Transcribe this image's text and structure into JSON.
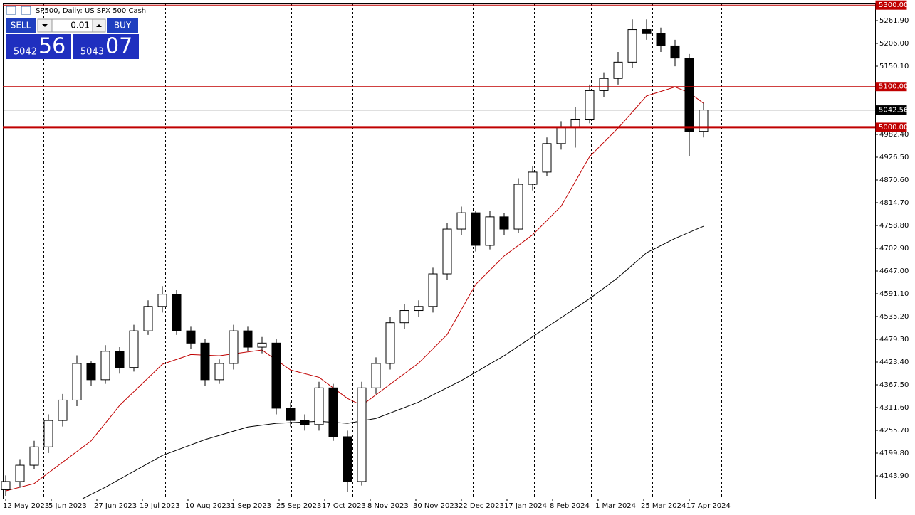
{
  "header": {
    "title": "SP500, Daily:  US SPX 500 Cash"
  },
  "trade_panel": {
    "sell": "SELL",
    "buy": "BUY",
    "volume": "0.01",
    "bid_big": "5042",
    "bid_small": "56",
    "ask_big": "5043",
    "ask_small": "07"
  },
  "chart_data": {
    "type": "candlestick",
    "xlim": [
      -1,
      305.25
    ],
    "ylim": [
      4088.0,
      5305.6
    ],
    "xticks": [
      {
        "value": 0,
        "label": "12 May 2023"
      },
      {
        "value": 16,
        "label": "5 Jun 2023"
      },
      {
        "value": 32,
        "label": "27 Jun 2023"
      },
      {
        "value": 48,
        "label": "19 Jul 2023"
      },
      {
        "value": 64,
        "label": "10 Aug 2023"
      },
      {
        "value": 80,
        "label": "1 Sep 2023"
      },
      {
        "value": 96,
        "label": "25 Sep 2023"
      },
      {
        "value": 112,
        "label": "17 Oct 2023"
      },
      {
        "value": 128,
        "label": "8 Nov 2023"
      },
      {
        "value": 144,
        "label": "30 Nov 2023"
      },
      {
        "value": 160,
        "label": "22 Dec 2023"
      },
      {
        "value": 176,
        "label": "17 Jan 2024"
      },
      {
        "value": 192,
        "label": "8 Feb 2024"
      },
      {
        "value": 208,
        "label": "1 Mar 2024"
      },
      {
        "value": 224,
        "label": "25 Mar 2024"
      },
      {
        "value": 240,
        "label": "17 Apr 2024"
      }
    ],
    "yticks": [
      {
        "value": 5261.9,
        "label": "5261.90"
      },
      {
        "value": 5206.0,
        "label": "5206.00"
      },
      {
        "value": 5150.1,
        "label": "5150.10"
      },
      {
        "value": 4982.4,
        "label": "4982.40"
      },
      {
        "value": 4926.5,
        "label": "4926.50"
      },
      {
        "value": 4870.6,
        "label": "4870.60"
      },
      {
        "value": 4814.7,
        "label": "4814.70"
      },
      {
        "value": 4758.8,
        "label": "4758.80"
      },
      {
        "value": 4702.9,
        "label": "4702.90"
      },
      {
        "value": 4647.0,
        "label": "4647.00"
      },
      {
        "value": 4591.1,
        "label": "4591.10"
      },
      {
        "value": 4535.2,
        "label": "4535.20"
      },
      {
        "value": 4479.3,
        "label": "4479.30"
      },
      {
        "value": 4423.4,
        "label": "4423.40"
      },
      {
        "value": 4367.5,
        "label": "4367.50"
      },
      {
        "value": 4311.6,
        "label": "4311.60"
      },
      {
        "value": 4255.7,
        "label": "4255.70"
      },
      {
        "value": 4199.8,
        "label": "4199.80"
      },
      {
        "value": 4143.9,
        "label": "4143.90"
      }
    ],
    "hlines": [
      {
        "value": 5300.0,
        "label": "5300.00",
        "color": "#c00000",
        "width": 1
      },
      {
        "value": 5100.0,
        "label": "5100.00",
        "color": "#c00000",
        "width": 1
      },
      {
        "value": 5042.56,
        "label": "5042.56",
        "color": "#000000",
        "width": 1
      },
      {
        "value": 5000.0,
        "label": "5000.00",
        "color": "#c00000",
        "width": 3
      }
    ],
    "candles": {
      "x": [
        0,
        5,
        10,
        15,
        20,
        25,
        30,
        35,
        40,
        45,
        50,
        55,
        60,
        65,
        70,
        75,
        80,
        85,
        90,
        95,
        100,
        105,
        110,
        115,
        120,
        125,
        130,
        135,
        140,
        145,
        150,
        155,
        160,
        165,
        170,
        175,
        180,
        185,
        190,
        195,
        200,
        205,
        210,
        215,
        220,
        225,
        230,
        235,
        240,
        245
      ],
      "open": [
        4110,
        4130,
        4170,
        4215,
        4280,
        4330,
        4420,
        4380,
        4450,
        4410,
        4500,
        4560,
        4590,
        4500,
        4470,
        4380,
        4420,
        4500,
        4460,
        4470,
        4310,
        4280,
        4270,
        4360,
        4240,
        4130,
        4360,
        4420,
        4520,
        4550,
        4560,
        4640,
        4750,
        4790,
        4710,
        4780,
        4750,
        4860,
        4890,
        4960,
        5000,
        5020,
        5090,
        5120,
        5160,
        5240,
        5230,
        5200,
        5170,
        4990
      ],
      "high": [
        4145,
        4185,
        4230,
        4295,
        4345,
        4440,
        4425,
        4465,
        4460,
        4515,
        4575,
        4610,
        4600,
        4510,
        4480,
        4430,
        4515,
        4510,
        4485,
        4480,
        4325,
        4295,
        4375,
        4370,
        4255,
        4375,
        4435,
        4535,
        4565,
        4575,
        4655,
        4765,
        4805,
        4795,
        4795,
        4790,
        4875,
        4905,
        4975,
        5015,
        5050,
        5105,
        5135,
        5185,
        5265,
        5265,
        5245,
        5215,
        5180,
        5060
      ],
      "low": [
        4095,
        4115,
        4160,
        4200,
        4265,
        4315,
        4365,
        4370,
        4395,
        4400,
        4490,
        4545,
        4490,
        4455,
        4365,
        4370,
        4405,
        4450,
        4445,
        4295,
        4265,
        4255,
        4255,
        4230,
        4105,
        4120,
        4345,
        4405,
        4505,
        4535,
        4545,
        4625,
        4735,
        4695,
        4700,
        4735,
        4740,
        4845,
        4880,
        4945,
        4950,
        5010,
        5075,
        5105,
        5145,
        5215,
        5185,
        5150,
        4930,
        4975
      ],
      "close": [
        4130,
        4170,
        4215,
        4280,
        4330,
        4420,
        4380,
        4450,
        4410,
        4500,
        4560,
        4590,
        4500,
        4470,
        4380,
        4420,
        4500,
        4460,
        4470,
        4310,
        4280,
        4270,
        4360,
        4240,
        4130,
        4360,
        4420,
        4520,
        4550,
        4560,
        4640,
        4750,
        4790,
        4710,
        4780,
        4750,
        4860,
        4890,
        4960,
        5000,
        5020,
        5090,
        5120,
        5160,
        5240,
        5230,
        5200,
        5170,
        4990,
        5042.56
      ]
    },
    "series": [
      {
        "color": "#c00000",
        "x": [
          0,
          10,
          30,
          40,
          55,
          65,
          75,
          90,
          100,
          110,
          120,
          125,
          135,
          145,
          155,
          165,
          175,
          185,
          195,
          205,
          215,
          225,
          235,
          240,
          245
        ],
        "values": [
          4107,
          4125,
          4230,
          4317,
          4418,
          4442,
          4439,
          4453,
          4404,
          4386,
          4334,
          4317,
          4369,
          4421,
          4491,
          4614,
          4684,
          4736,
          4806,
          4928,
          4998,
          5077,
          5099,
          5085,
          5059
        ]
      },
      {
        "color": "#000000",
        "x": [
          27,
          35,
          55,
          70,
          85,
          95,
          110,
          120,
          130,
          145,
          160,
          175,
          190,
          205,
          215,
          225,
          235,
          245
        ],
        "values": [
          4088,
          4116,
          4194,
          4233,
          4264,
          4273,
          4278,
          4273,
          4285,
          4325,
          4378,
          4439,
          4509,
          4579,
          4631,
          4692,
          4727,
          4757
        ]
      }
    ]
  }
}
